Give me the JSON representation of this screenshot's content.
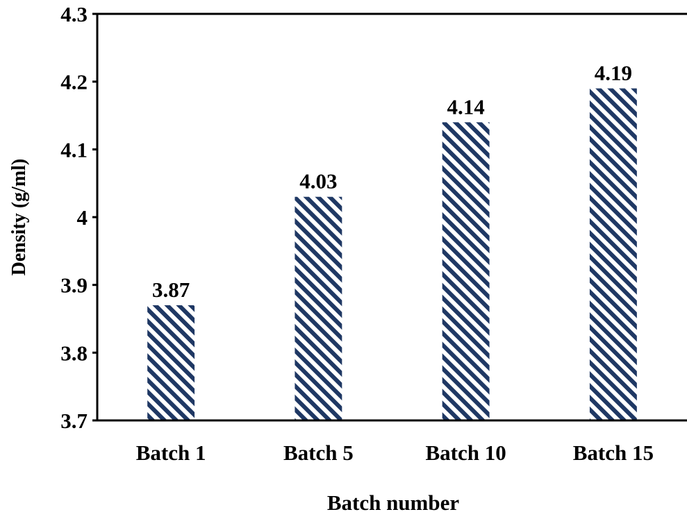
{
  "chart_data": {
    "type": "bar",
    "categories": [
      "Batch 1",
      "Batch 5",
      "Batch 10",
      "Batch 15"
    ],
    "values": [
      3.87,
      4.03,
      4.14,
      4.19
    ],
    "data_labels": [
      "3.87",
      "4.03",
      "4.14",
      "4.19"
    ],
    "title": "",
    "xlabel": "Batch number",
    "ylabel": "Density (g/ml)",
    "ylim": [
      3.7,
      4.3
    ],
    "yticks": [
      3.7,
      3.8,
      3.9,
      4.0,
      4.1,
      4.2,
      4.3
    ],
    "ytick_labels": [
      "3.7",
      "3.8",
      "3.9",
      "4",
      "4.1",
      "4.2",
      "4.3"
    ],
    "grid": false,
    "legend": "none",
    "bar_pattern": "diagonal-stripes",
    "bar_color": "#1f3864",
    "bar_stripe_bg": "#ffffff"
  }
}
